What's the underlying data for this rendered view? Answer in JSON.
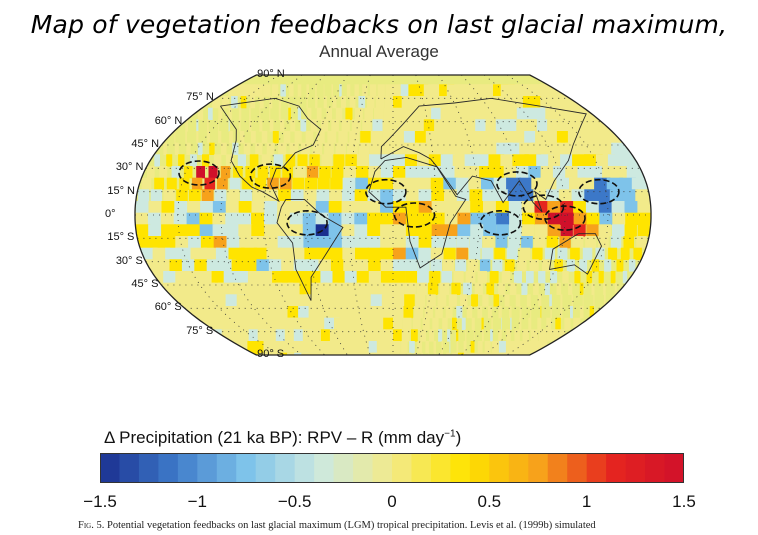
{
  "title": "Map of vegetation feedbacks on last glacial maximum,",
  "map": {
    "subtitle": "Annual Average",
    "projection": "robinson",
    "background_color": "#e8eb80",
    "dotted_graticule": true,
    "latitude_labels": [
      "90° N",
      "75° N",
      "60° N",
      "45° N",
      "30° N",
      "15° N",
      "0°",
      "15° S",
      "30° S",
      "45° S",
      "60° S",
      "75° S",
      "90° S"
    ],
    "anomaly_regions": [
      {
        "name": "eastern-pacific-30n",
        "lat": 27,
        "lon": -140,
        "value": 1.5
      },
      {
        "name": "gulf-of-mexico",
        "lat": 25,
        "lon": -88,
        "value": 1.4
      },
      {
        "name": "amazon-basin",
        "lat": -5,
        "lon": -60,
        "value": -1.2
      },
      {
        "name": "sahel-west-africa",
        "lat": 15,
        "lon": -5,
        "value": -0.8
      },
      {
        "name": "central-africa",
        "lat": 0,
        "lon": 15,
        "value": 1.2
      },
      {
        "name": "indian-ocean",
        "lat": -5,
        "lon": 75,
        "value": -1.1
      },
      {
        "name": "bay-of-bengal",
        "lat": 20,
        "lon": 88,
        "value": -1.3
      },
      {
        "name": "indochina",
        "lat": 5,
        "lon": 105,
        "value": 1.5
      },
      {
        "name": "maritime-continent",
        "lat": -2,
        "lon": 120,
        "value": 1.3
      },
      {
        "name": "west-pacific",
        "lat": 15,
        "lon": 145,
        "value": -1.4
      }
    ]
  },
  "colorbar": {
    "title_prefix": "Δ Precipitation (21 ka BP): RPV – R (mm day",
    "title_exponent": "−1",
    "title_suffix": ")",
    "min": -1.5,
    "max": 1.5,
    "colors": [
      "#1a2f8f",
      "#3c78c8",
      "#7ec3ea",
      "#cde9e0",
      "#f2ea8a",
      "#ffe400",
      "#f7a21b",
      "#e5251f",
      "#d0102a"
    ],
    "tick_labels": [
      "−1.5",
      "−1",
      "−0.5",
      "0",
      "0.5",
      "1",
      "1.5"
    ],
    "tick_values": [
      -1.5,
      -1,
      -0.5,
      0,
      0.5,
      1,
      1.5
    ]
  },
  "caption": {
    "figure": "Fig. 5.",
    "text": "Potential vegetation feedbacks on last glacial maximum (LGM) tropical precipitation. Levis et al. (1999b) simulated"
  }
}
